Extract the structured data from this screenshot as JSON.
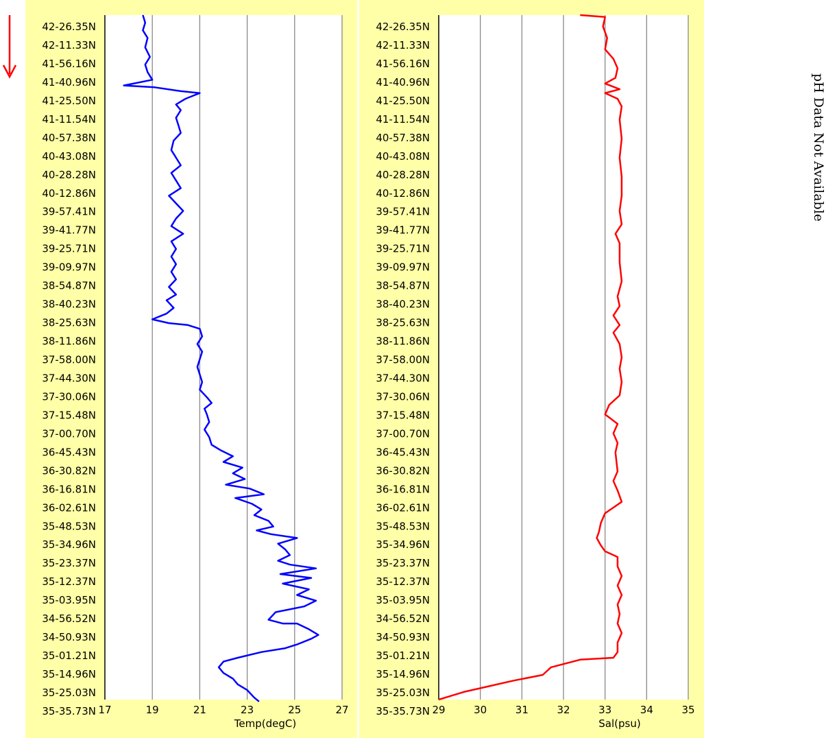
{
  "page": {
    "direction_arrow_color": "#ff0000",
    "side_note": "pH Data Not Available"
  },
  "chart_data": [
    {
      "type": "line",
      "xlabel": "Temp(degC)",
      "ylabel": "",
      "xlim": [
        17,
        27
      ],
      "xticks": [
        "17",
        "19",
        "21",
        "23",
        "25",
        "27"
      ],
      "grid": true,
      "background": "#ffffa8",
      "series": [
        {
          "color": "#0000ff",
          "points": [
            [
              18.6,
              0.0
            ],
            [
              18.7,
              0.4
            ],
            [
              18.6,
              0.8
            ],
            [
              18.8,
              1.2
            ],
            [
              18.7,
              1.7
            ],
            [
              18.9,
              2.2
            ],
            [
              18.7,
              2.6
            ],
            [
              18.8,
              3.0
            ],
            [
              19.0,
              3.4
            ],
            [
              17.8,
              3.7
            ],
            [
              19.1,
              3.8
            ],
            [
              20.2,
              4.0
            ],
            [
              21.0,
              4.1
            ],
            [
              20.4,
              4.4
            ],
            [
              20.0,
              4.7
            ],
            [
              20.2,
              5.0
            ],
            [
              20.0,
              5.4
            ],
            [
              20.1,
              5.8
            ],
            [
              20.2,
              6.2
            ],
            [
              19.9,
              6.6
            ],
            [
              19.8,
              7.1
            ],
            [
              20.0,
              7.5
            ],
            [
              20.2,
              7.9
            ],
            [
              19.8,
              8.3
            ],
            [
              20.0,
              8.7
            ],
            [
              20.2,
              9.1
            ],
            [
              19.7,
              9.5
            ],
            [
              20.0,
              9.9
            ],
            [
              20.3,
              10.3
            ],
            [
              20.0,
              10.7
            ],
            [
              19.8,
              11.1
            ],
            [
              20.3,
              11.5
            ],
            [
              19.8,
              11.9
            ],
            [
              20.0,
              12.3
            ],
            [
              19.8,
              12.7
            ],
            [
              20.0,
              13.1
            ],
            [
              19.8,
              13.5
            ],
            [
              20.0,
              13.9
            ],
            [
              19.7,
              14.3
            ],
            [
              20.0,
              14.7
            ],
            [
              19.6,
              15.0
            ],
            [
              19.9,
              15.4
            ],
            [
              19.6,
              15.7
            ],
            [
              19.0,
              16.0
            ],
            [
              19.7,
              16.2
            ],
            [
              20.5,
              16.3
            ],
            [
              21.0,
              16.5
            ],
            [
              21.1,
              16.9
            ],
            [
              20.9,
              17.3
            ],
            [
              21.1,
              17.7
            ],
            [
              21.0,
              18.1
            ],
            [
              20.9,
              18.5
            ],
            [
              21.0,
              18.9
            ],
            [
              21.1,
              19.3
            ],
            [
              21.0,
              19.7
            ],
            [
              21.3,
              20.1
            ],
            [
              21.5,
              20.4
            ],
            [
              21.2,
              20.7
            ],
            [
              21.3,
              21.0
            ],
            [
              21.4,
              21.4
            ],
            [
              21.2,
              21.8
            ],
            [
              21.4,
              22.2
            ],
            [
              21.5,
              22.6
            ],
            [
              21.9,
              22.9
            ],
            [
              22.4,
              23.2
            ],
            [
              22.0,
              23.5
            ],
            [
              22.8,
              23.8
            ],
            [
              22.4,
              24.1
            ],
            [
              22.9,
              24.4
            ],
            [
              22.1,
              24.7
            ],
            [
              23.1,
              24.9
            ],
            [
              23.7,
              25.2
            ],
            [
              22.5,
              25.4
            ],
            [
              23.2,
              25.7
            ],
            [
              23.6,
              26.0
            ],
            [
              23.3,
              26.3
            ],
            [
              23.9,
              26.6
            ],
            [
              24.1,
              26.9
            ],
            [
              23.4,
              27.1
            ],
            [
              24.0,
              27.3
            ],
            [
              25.1,
              27.5
            ],
            [
              24.3,
              27.8
            ],
            [
              24.6,
              28.1
            ],
            [
              24.8,
              28.4
            ],
            [
              24.3,
              28.7
            ],
            [
              24.8,
              28.9
            ],
            [
              25.9,
              29.1
            ],
            [
              24.4,
              29.4
            ],
            [
              25.7,
              29.6
            ],
            [
              24.5,
              29.9
            ],
            [
              25.6,
              30.2
            ],
            [
              25.1,
              30.5
            ],
            [
              25.9,
              30.8
            ],
            [
              25.4,
              31.1
            ],
            [
              24.2,
              31.4
            ],
            [
              23.9,
              31.8
            ],
            [
              24.5,
              32.0
            ],
            [
              25.1,
              32.0
            ],
            [
              25.6,
              32.3
            ],
            [
              26.0,
              32.6
            ],
            [
              25.7,
              32.8
            ],
            [
              25.1,
              33.1
            ],
            [
              24.6,
              33.3
            ],
            [
              23.6,
              33.5
            ],
            [
              22.6,
              33.8
            ],
            [
              22.0,
              34.0
            ],
            [
              21.8,
              34.3
            ],
            [
              22.0,
              34.6
            ],
            [
              22.4,
              34.9
            ],
            [
              22.6,
              35.2
            ],
            [
              23.0,
              35.5
            ],
            [
              23.3,
              35.9
            ],
            [
              23.5,
              36.1
            ]
          ]
        }
      ]
    },
    {
      "type": "line",
      "xlabel": "Sal(psu)",
      "ylabel": "",
      "xlim": [
        29,
        35
      ],
      "xticks": [
        "29",
        "30",
        "31",
        "32",
        "33",
        "34",
        "35"
      ],
      "grid": true,
      "background": "#ffffa8",
      "series": [
        {
          "color": "#ff0000",
          "points": [
            [
              32.4,
              0.0
            ],
            [
              33.0,
              0.1
            ],
            [
              32.95,
              0.6
            ],
            [
              33.05,
              1.2
            ],
            [
              33.0,
              1.8
            ],
            [
              33.2,
              2.3
            ],
            [
              33.3,
              2.8
            ],
            [
              33.25,
              3.3
            ],
            [
              33.0,
              3.6
            ],
            [
              33.35,
              3.9
            ],
            [
              33.0,
              4.1
            ],
            [
              33.3,
              4.4
            ],
            [
              33.4,
              4.8
            ],
            [
              33.35,
              5.5
            ],
            [
              33.4,
              6.5
            ],
            [
              33.35,
              7.5
            ],
            [
              33.4,
              8.5
            ],
            [
              33.4,
              9.5
            ],
            [
              33.35,
              10.3
            ],
            [
              33.4,
              11.0
            ],
            [
              33.25,
              11.5
            ],
            [
              33.35,
              12.0
            ],
            [
              33.35,
              13.0
            ],
            [
              33.4,
              14.0
            ],
            [
              33.3,
              14.8
            ],
            [
              33.35,
              15.3
            ],
            [
              33.2,
              15.8
            ],
            [
              33.35,
              16.3
            ],
            [
              33.2,
              16.7
            ],
            [
              33.35,
              17.3
            ],
            [
              33.4,
              18.0
            ],
            [
              33.35,
              18.6
            ],
            [
              33.4,
              19.3
            ],
            [
              33.35,
              20.0
            ],
            [
              33.1,
              20.5
            ],
            [
              33.0,
              21.0
            ],
            [
              33.3,
              21.5
            ],
            [
              33.2,
              22.0
            ],
            [
              33.3,
              22.5
            ],
            [
              33.25,
              23.0
            ],
            [
              33.3,
              24.0
            ],
            [
              33.2,
              24.5
            ],
            [
              33.3,
              25.0
            ],
            [
              33.4,
              25.6
            ],
            [
              33.0,
              26.2
            ],
            [
              32.9,
              26.7
            ],
            [
              32.85,
              27.2
            ],
            [
              32.8,
              27.5
            ],
            [
              32.9,
              27.9
            ],
            [
              33.0,
              28.2
            ],
            [
              33.3,
              28.5
            ],
            [
              33.3,
              29.0
            ],
            [
              33.4,
              29.5
            ],
            [
              33.3,
              30.0
            ],
            [
              33.4,
              30.5
            ],
            [
              33.3,
              31.0
            ],
            [
              33.35,
              31.5
            ],
            [
              33.3,
              32.0
            ],
            [
              33.4,
              32.5
            ],
            [
              33.3,
              33.0
            ],
            [
              33.3,
              33.5
            ],
            [
              33.2,
              33.8
            ],
            [
              32.4,
              33.9
            ],
            [
              31.7,
              34.3
            ],
            [
              31.5,
              34.7
            ],
            [
              30.8,
              35.0
            ],
            [
              30.2,
              35.3
            ],
            [
              29.6,
              35.6
            ],
            [
              29.0,
              36.0
            ]
          ]
        }
      ]
    }
  ],
  "y_tick_labels": [
    "42-26.35N",
    "42-11.33N",
    "41-56.16N",
    "41-40.96N",
    "41-25.50N",
    "41-11.54N",
    "40-57.38N",
    "40-43.08N",
    "40-28.28N",
    "40-12.86N",
    "39-57.41N",
    "39-41.77N",
    "39-25.71N",
    "39-09.97N",
    "38-54.87N",
    "38-40.23N",
    "38-25.63N",
    "38-11.86N",
    "37-58.00N",
    "37-44.30N",
    "37-30.06N",
    "37-15.48N",
    "37-00.70N",
    "36-45.43N",
    "36-30.82N",
    "36-16.81N",
    "36-02.61N",
    "35-48.53N",
    "35-34.96N",
    "35-23.37N",
    "35-12.37N",
    "35-03.95N",
    "34-56.52N",
    "34-50.93N",
    "35-01.21N",
    "35-14.96N",
    "35-25.03N",
    "35-35.73N"
  ]
}
